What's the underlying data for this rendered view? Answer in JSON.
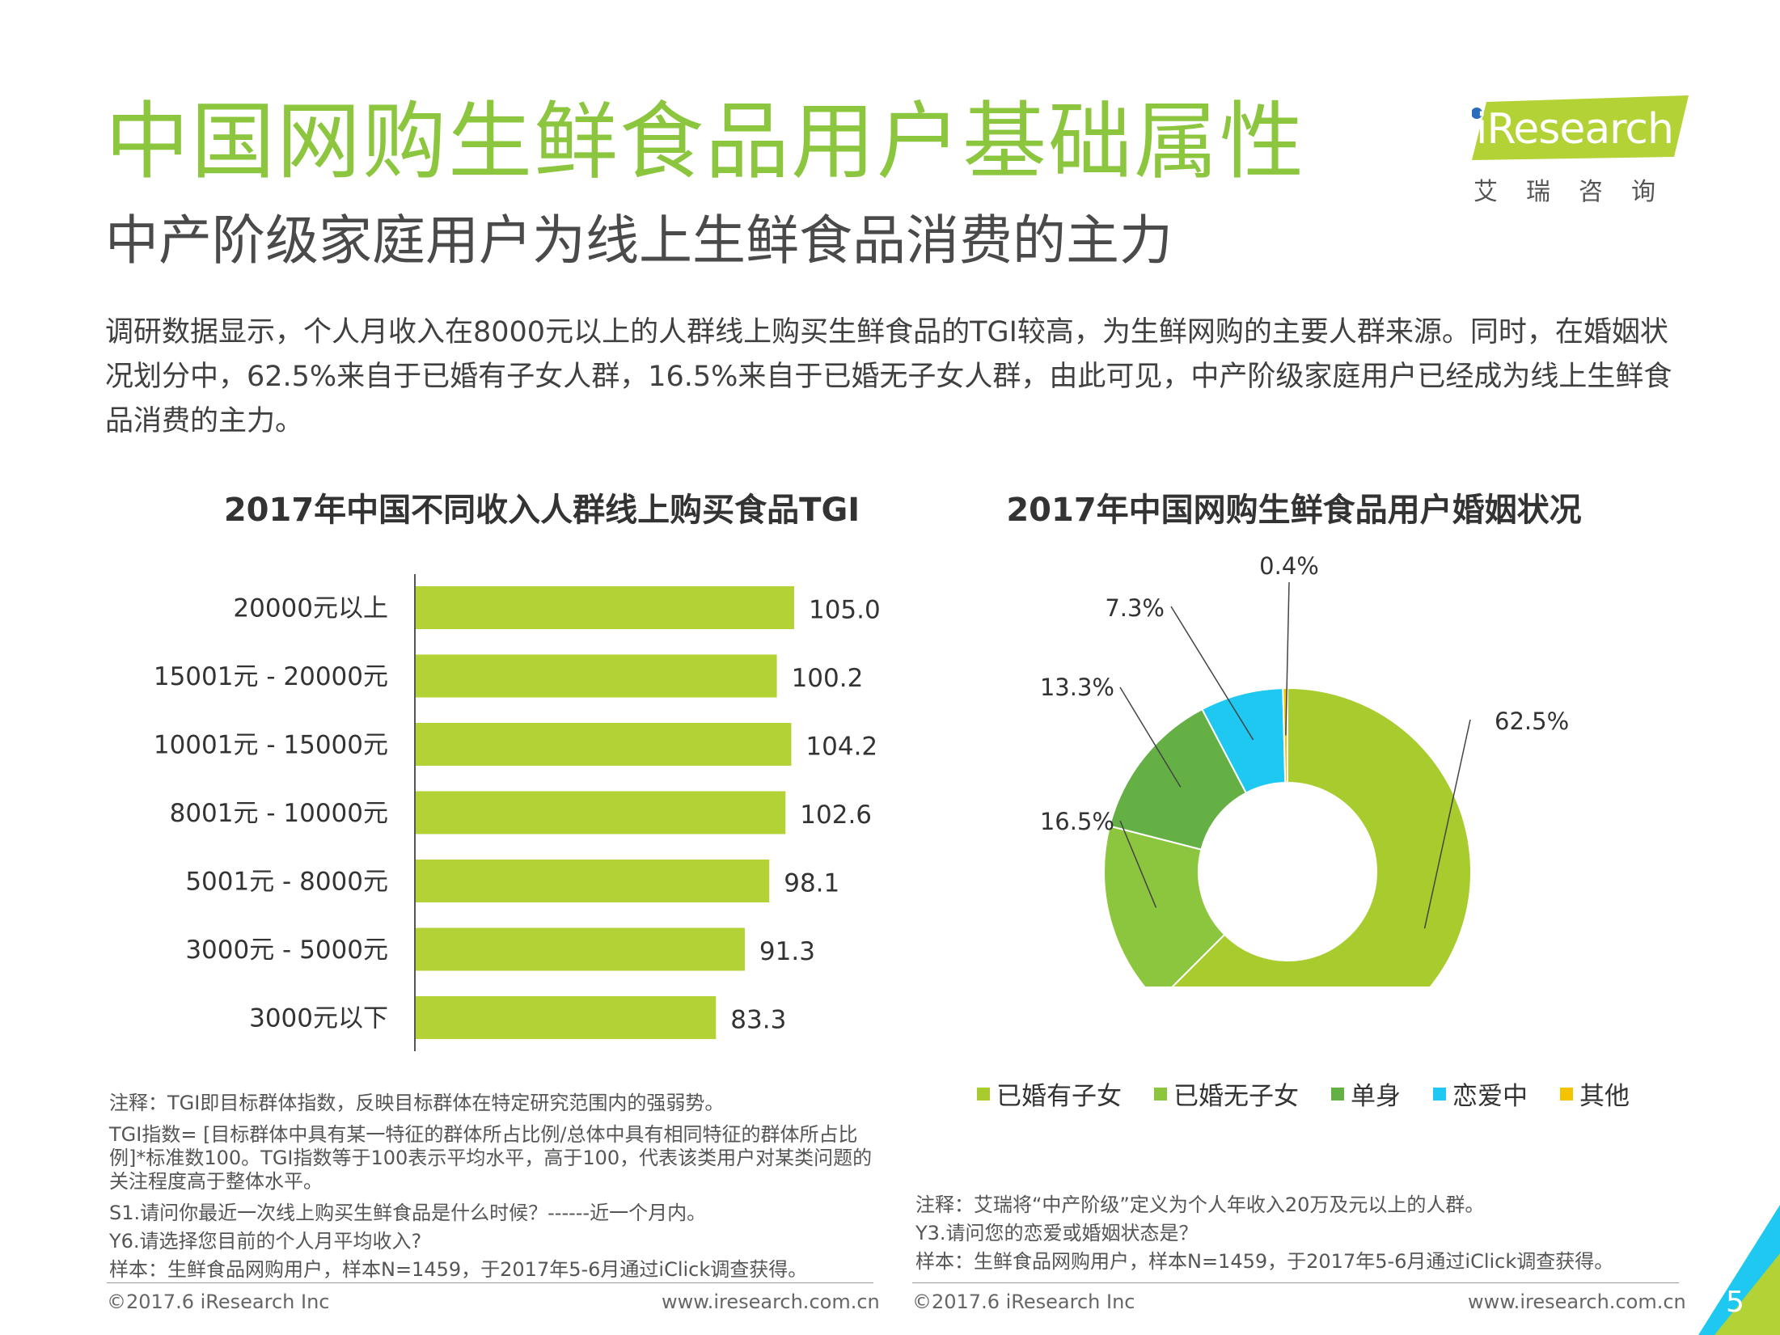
{
  "header": {
    "title": "中国网购生鲜食品用户基础属性",
    "subtitle": "中产阶级家庭用户为线上生鲜食品消费的主力",
    "intro": "调研数据显示，个人月收入在8000元以上的人群线上购买生鲜食品的TGI较高，为生鲜网购的主要人群来源。同时，在婚姻状况划分中，62.5%来自于已婚有子女人群，16.5%来自于已婚无子女人群，由此可见，中产阶级家庭用户已经成为线上生鲜食品消费的主力。"
  },
  "logo": {
    "word": "iResearch",
    "cn": "艾瑞咨询"
  },
  "chart_data": [
    {
      "type": "bar",
      "orientation": "horizontal",
      "title": "2017年中国不同收入人群线上购买食品TGI",
      "categories": [
        "20000元以上",
        "15001元 - 20000元",
        "10001元 - 15000元",
        "8001元 - 10000元",
        "5001元 - 8000元",
        "3000元 - 5000元",
        "3000元以下"
      ],
      "values": [
        105.0,
        100.2,
        104.2,
        102.6,
        98.1,
        91.3,
        83.3
      ],
      "value_labels": [
        "105.0",
        "100.2",
        "104.2",
        "102.6",
        "98.1",
        "91.3",
        "83.3"
      ],
      "color": "#b2d235",
      "xlim": [
        0,
        110
      ]
    },
    {
      "type": "pie",
      "donut": true,
      "title": "2017年中国网购生鲜食品用户婚姻状况",
      "labels": [
        "已婚有子女",
        "已婚无子女",
        "单身",
        "恋爱中",
        "其他"
      ],
      "values": [
        62.5,
        16.5,
        13.3,
        7.3,
        0.4
      ],
      "value_labels": [
        "62.5%",
        "16.5%",
        "13.3%",
        "7.3%",
        "0.4%"
      ],
      "colors": [
        "#a8cc2e",
        "#8cc63f",
        "#65b045",
        "#1ec8f0",
        "#f5c400"
      ],
      "legend_position": "bottom"
    }
  ],
  "notes_left": [
    "注释：TGI即目标群体指数，反映目标群体在特定研究范围内的强弱势。",
    "TGI指数= [目标群体中具有某一特征的群体所占比例/总体中具有相同特征的群体所占比例]*标准数100。TGI指数等于100表示平均水平，高于100，代表该类用户对某类问题的关注程度高于整体水平。",
    "S1.请问你最近一次线上购买生鲜食品是什么时候？------近一个月内。",
    "Y6.请选择您目前的个人月平均收入?",
    "样本：生鲜食品网购用户，样本N=1459，于2017年5-6月通过iClick调查获得。"
  ],
  "notes_right": [
    "注释：艾瑞将“中产阶级”定义为个人年收入20万及元以上的人群。",
    "Y3.请问您的恋爱或婚姻状态是？",
    "样本：生鲜食品网购用户，样本N=1459，于2017年5-6月通过iClick调查获得。"
  ],
  "footer": {
    "copyright": "©2017.6 iResearch Inc",
    "url": "www.iresearch.com.cn",
    "page_number": "5"
  }
}
